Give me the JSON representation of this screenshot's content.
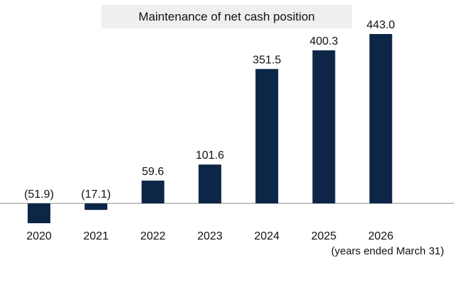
{
  "chart_data": {
    "type": "bar",
    "title": "Maintenance of net cash position",
    "categories": [
      "2020",
      "2021",
      "2022",
      "2023",
      "2024",
      "2025",
      "2026"
    ],
    "values": [
      -51.9,
      -17.1,
      59.6,
      101.6,
      351.5,
      400.3,
      443.0
    ],
    "data_labels": [
      "(51.9)",
      "(17.1)",
      "59.6",
      "101.6",
      "351.5",
      "400.3",
      "443.0"
    ],
    "xlabel": "(years ended March 31)",
    "ylabel": "",
    "grid": false,
    "legend": "none",
    "bar_color": "#0d2647"
  }
}
